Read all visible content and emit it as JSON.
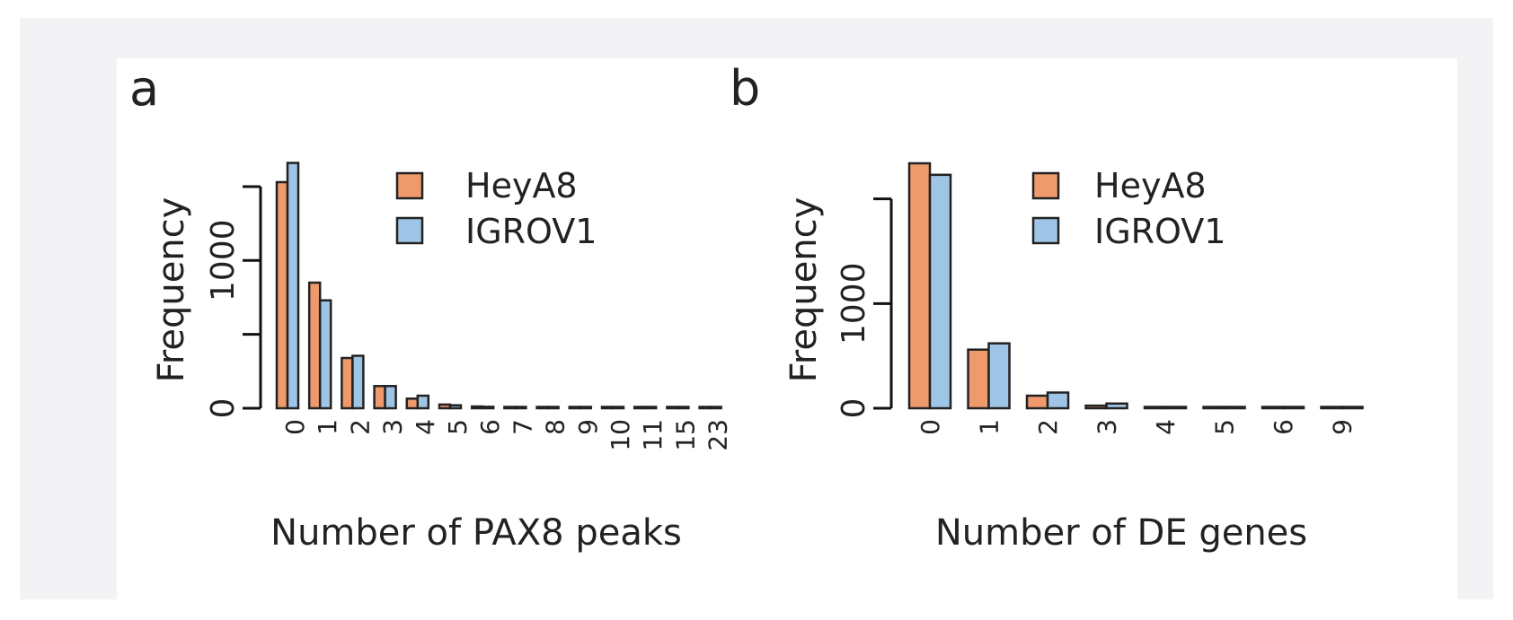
{
  "colors": {
    "HeyA8": "#ee9a6c",
    "IGROV1": "#9ec4e6"
  },
  "chart_data": [
    {
      "type": "bar",
      "panel_label": "a",
      "xlabel": "Number of PAX8 peaks",
      "ylabel": "Frequency",
      "categories": [
        "0",
        "1",
        "2",
        "3",
        "4",
        "5",
        "6",
        "7",
        "8",
        "9",
        "10",
        "11",
        "15",
        "23"
      ],
      "series": [
        {
          "name": "HeyA8",
          "values": [
            1530,
            850,
            340,
            150,
            65,
            25,
            12,
            8,
            5,
            3,
            2,
            1,
            1,
            1
          ]
        },
        {
          "name": "IGROV1",
          "values": [
            1660,
            730,
            355,
            150,
            85,
            20,
            10,
            8,
            5,
            3,
            2,
            1,
            1,
            1
          ]
        }
      ],
      "yticks": [
        0,
        500,
        1000,
        1500
      ],
      "ytick_labels": [
        "0",
        "",
        "1000",
        ""
      ],
      "ylim": [
        0,
        1700
      ],
      "legend": "top-right"
    },
    {
      "type": "bar",
      "panel_label": "b",
      "xlabel": "Number of DE genes",
      "ylabel": "Frequency",
      "categories": [
        "0",
        "1",
        "2",
        "3",
        "4",
        "5",
        "6",
        "9"
      ],
      "series": [
        {
          "name": "HeyA8",
          "values": [
            2340,
            560,
            120,
            25,
            8,
            4,
            2,
            1
          ]
        },
        {
          "name": "IGROV1",
          "values": [
            2230,
            620,
            150,
            45,
            12,
            4,
            2,
            1
          ]
        }
      ],
      "yticks": [
        0,
        1000,
        2000
      ],
      "ytick_labels": [
        "0",
        "1000",
        ""
      ],
      "ylim": [
        0,
        2400
      ],
      "legend": "top-right"
    }
  ]
}
